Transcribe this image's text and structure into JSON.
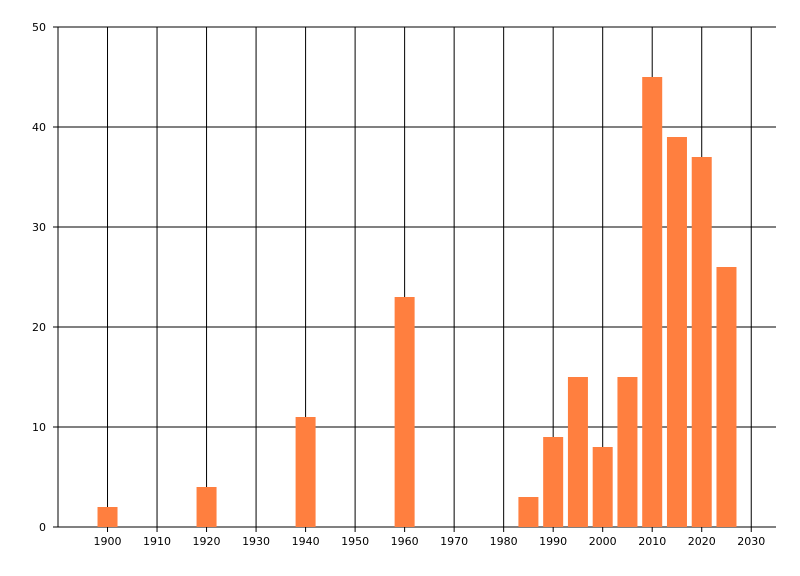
{
  "chart_data": {
    "type": "bar",
    "x": [
      1900,
      1920,
      1940,
      1960,
      1985,
      1990,
      1995,
      2000,
      2005,
      2010,
      2015,
      2020,
      2025
    ],
    "values": [
      2,
      4,
      11,
      23,
      3,
      9,
      15,
      8,
      15,
      45,
      39,
      37,
      26
    ],
    "color": "#ff7f3f",
    "xlim": [
      1890,
      2035
    ],
    "xticks": [
      1900,
      1910,
      1920,
      1930,
      1940,
      1950,
      1960,
      1970,
      1980,
      1990,
      2000,
      2010,
      2020,
      2030
    ],
    "ylim": [
      0,
      50
    ],
    "yticks": [
      0,
      10,
      20,
      30,
      40,
      50
    ],
    "grid": true
  }
}
